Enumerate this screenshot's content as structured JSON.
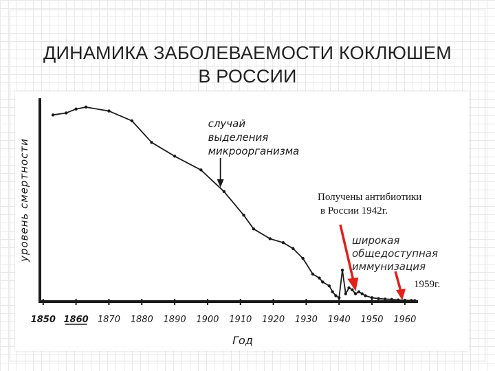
{
  "title": {
    "line1": "ДИНАМИКА ЗАБОЛЕВАЕМОСТИ КОКЛЮШЕМ",
    "line2": "В РОССИИ"
  },
  "chart_data": {
    "type": "line",
    "title": "",
    "xlabel": "Год",
    "ylabel": "уровень смертности",
    "xlim": [
      1849,
      1964
    ],
    "x_ticks": [
      1850,
      1860,
      1870,
      1880,
      1890,
      1900,
      1910,
      1920,
      1930,
      1940,
      1950,
      1960
    ],
    "ylim": [
      0,
      100
    ],
    "series": [
      {
        "x": [
          1853,
          1857,
          1860,
          1863,
          1870,
          1877,
          1883,
          1890,
          1898,
          1905,
          1911,
          1914,
          1919,
          1923,
          1926,
          1929,
          1932,
          1934,
          1935,
          1937,
          1938,
          1939,
          1940,
          1941,
          1942,
          1943,
          1944,
          1945,
          1946,
          1947,
          1948,
          1950,
          1952,
          1954,
          1956,
          1958,
          1960,
          1962,
          1963
        ],
        "y": [
          95,
          96,
          98,
          99,
          97,
          92,
          81,
          74,
          67,
          56,
          44,
          37,
          32,
          30,
          27,
          22,
          14,
          12,
          10,
          8,
          5,
          3,
          2,
          16,
          4,
          7,
          6,
          4,
          5,
          4,
          3,
          2,
          1.5,
          1.3,
          1.1,
          0.8,
          0.7,
          0.6,
          0.5
        ]
      }
    ],
    "annotations": [
      {
        "text_lines": [
          "случай",
          "выделения",
          "микроорганизма"
        ],
        "x": 1906,
        "y": 56
      },
      {
        "text_lines": [
          "широкая",
          "общедоступная",
          "иммунизация"
        ],
        "x": 1948,
        "y": 6
      },
      {
        "text_lines": [
          "Получены антибиотики",
          "в России 1942г."
        ],
        "x": 1945,
        "y": 6
      },
      {
        "text_lines": [
          "1959г."
        ],
        "x": 1957,
        "y": 1
      }
    ],
    "colors": {
      "line": "#1a1a1a",
      "arrow_red": "#e0201a",
      "arrow_black": "#1a1a1a"
    },
    "grid": false
  }
}
